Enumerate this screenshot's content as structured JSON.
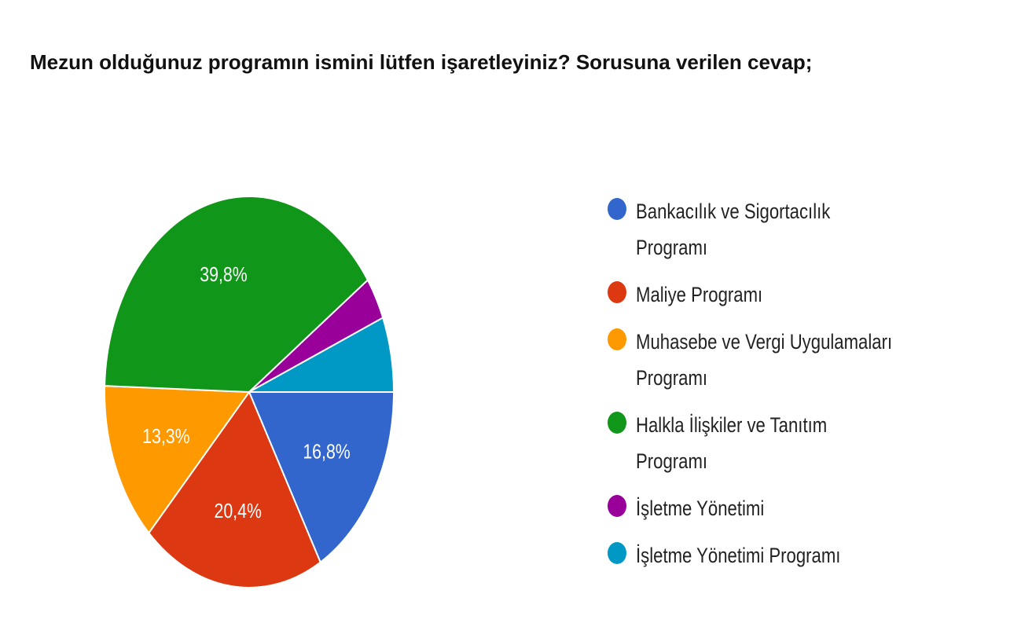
{
  "header": {
    "title": "Mezun olduğunuz programın ismini lütfen işaretleyiniz? Sorusuna verilen cevap;"
  },
  "chart_data": {
    "type": "pie",
    "slices": [
      {
        "label": "Bankacılık ve Sigortacılık Programı",
        "value": 16.8,
        "display": "16,8%",
        "color": "#3366cc"
      },
      {
        "label": "Maliye Programı",
        "value": 20.4,
        "display": "20,4%",
        "color": "#dc3912"
      },
      {
        "label": "Muhasebe ve Vergi Uygulamaları Programı",
        "value": 13.3,
        "display": "13,3%",
        "color": "#ff9900"
      },
      {
        "label": "Halkla İlişkiler ve Tanıtım Programı",
        "value": 39.8,
        "display": "39,8%",
        "color": "#109618"
      },
      {
        "label": "İşletme Yönetimi",
        "value": 3.5,
        "display": "",
        "color": "#990099"
      },
      {
        "label": "İşletme Yönetimi Programı",
        "value": 6.2,
        "display": "",
        "color": "#0099c6"
      }
    ],
    "legend_position": "right"
  }
}
